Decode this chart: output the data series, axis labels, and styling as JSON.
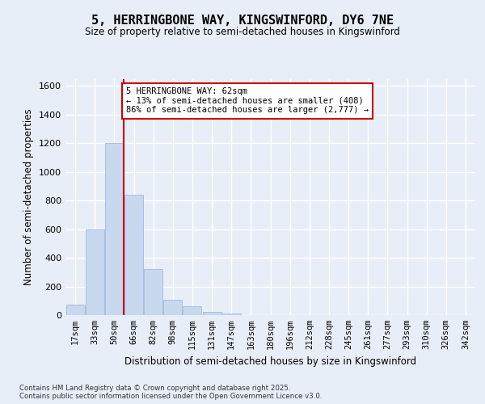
{
  "title": "5, HERRINGBONE WAY, KINGSWINFORD, DY6 7NE",
  "subtitle": "Size of property relative to semi-detached houses in Kingswinford",
  "xlabel": "Distribution of semi-detached houses by size in Kingswinford",
  "ylabel": "Number of semi-detached properties",
  "categories": [
    "17sqm",
    "33sqm",
    "50sqm",
    "66sqm",
    "82sqm",
    "98sqm",
    "115sqm",
    "131sqm",
    "147sqm",
    "163sqm",
    "180sqm",
    "196sqm",
    "212sqm",
    "228sqm",
    "245sqm",
    "261sqm",
    "277sqm",
    "293sqm",
    "310sqm",
    "326sqm",
    "342sqm"
  ],
  "values": [
    75,
    600,
    1200,
    840,
    320,
    110,
    60,
    25,
    10,
    0,
    0,
    0,
    0,
    0,
    0,
    0,
    0,
    0,
    0,
    0,
    0
  ],
  "bar_color": "#c8d8ee",
  "bar_edge_color": "#a8c0e0",
  "vline_x": 2.5,
  "annotation_text": "5 HERRINGBONE WAY: 62sqm\n← 13% of semi-detached houses are smaller (408)\n86% of semi-detached houses are larger (2,777) →",
  "annotation_box_facecolor": "#ffffff",
  "annotation_box_edgecolor": "#cc0000",
  "vline_color": "#cc0000",
  "ylim": [
    0,
    1650
  ],
  "yticks": [
    0,
    200,
    400,
    600,
    800,
    1000,
    1200,
    1400,
    1600
  ],
  "background_color": "#e8eef8",
  "grid_color": "#ffffff",
  "footer": "Contains HM Land Registry data © Crown copyright and database right 2025.\nContains public sector information licensed under the Open Government Licence v3.0."
}
